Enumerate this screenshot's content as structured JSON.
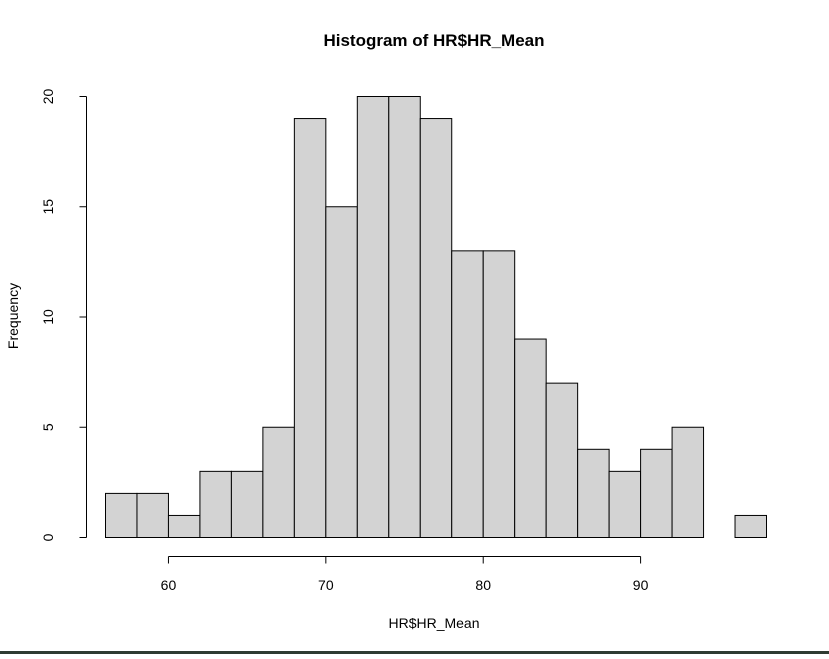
{
  "chart_data": {
    "type": "bar",
    "title": "Histogram of HR$HR_Mean",
    "xlabel": "HR$HR_Mean",
    "ylabel": "Frequency",
    "bin_edges": [
      56,
      58,
      60,
      62,
      64,
      66,
      68,
      70,
      72,
      74,
      76,
      78,
      80,
      82,
      84,
      86,
      88,
      90,
      92,
      94,
      96,
      98
    ],
    "values": [
      2,
      2,
      1,
      3,
      3,
      5,
      19,
      15,
      20,
      20,
      19,
      13,
      13,
      9,
      7,
      4,
      3,
      4,
      5,
      0,
      1
    ],
    "xlim": [
      56,
      98
    ],
    "ylim": [
      0,
      20
    ],
    "x_ticks": [
      60,
      70,
      80,
      90
    ],
    "y_ticks": [
      0,
      5,
      10,
      15,
      20
    ],
    "grid": false,
    "bar_color": "#d3d3d3",
    "edge_color": "#000000"
  }
}
